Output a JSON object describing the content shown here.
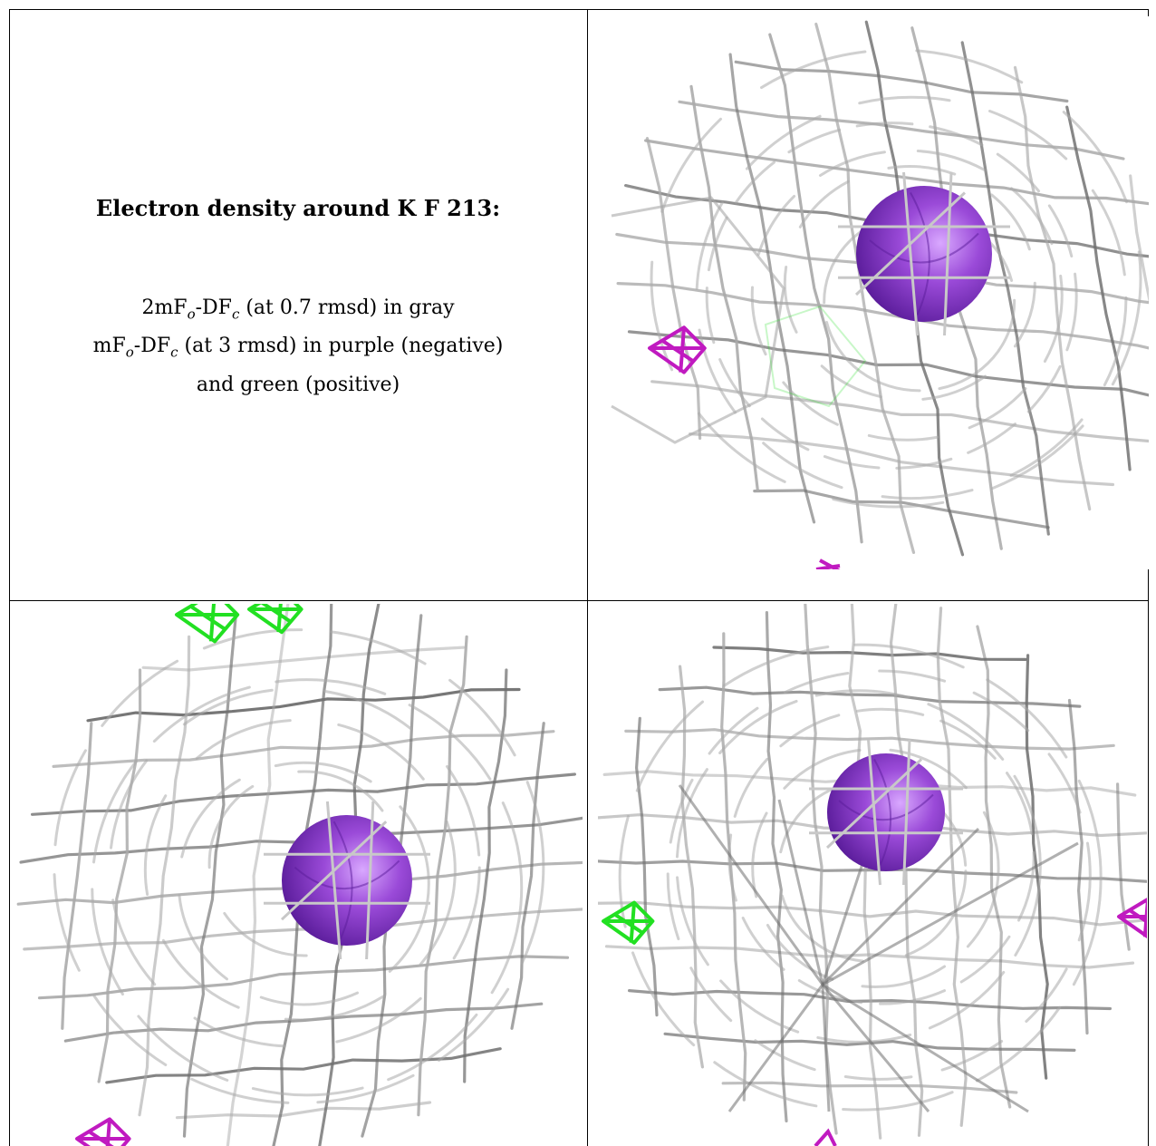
{
  "caption": {
    "title": "Electron density around K F 213:",
    "legend_lines": [
      {
        "prefix": "2mF",
        "sub1": "o",
        "mid": "-DF",
        "sub2": "c",
        "suffix": " (at 0.7 rmsd) in gray"
      },
      {
        "prefix": "mF",
        "sub1": "o",
        "mid": "-DF",
        "sub2": "c",
        "suffix": " (at 3 rmsd) in purple (negative)"
      },
      {
        "text": "and green (positive)"
      }
    ]
  },
  "colors": {
    "mesh_2fofc": "#a9a9a9",
    "mesh_dark": "#6f6f6f",
    "negative": "#c01ac0",
    "positive": "#22e022",
    "ion": "#9a4ad8",
    "ion_highlight": "#d9a8ff",
    "ion_shadow": "#5a1c9a"
  },
  "panels": [
    {
      "name": "view-1"
    },
    {
      "name": "view-2"
    },
    {
      "name": "view-3"
    }
  ]
}
